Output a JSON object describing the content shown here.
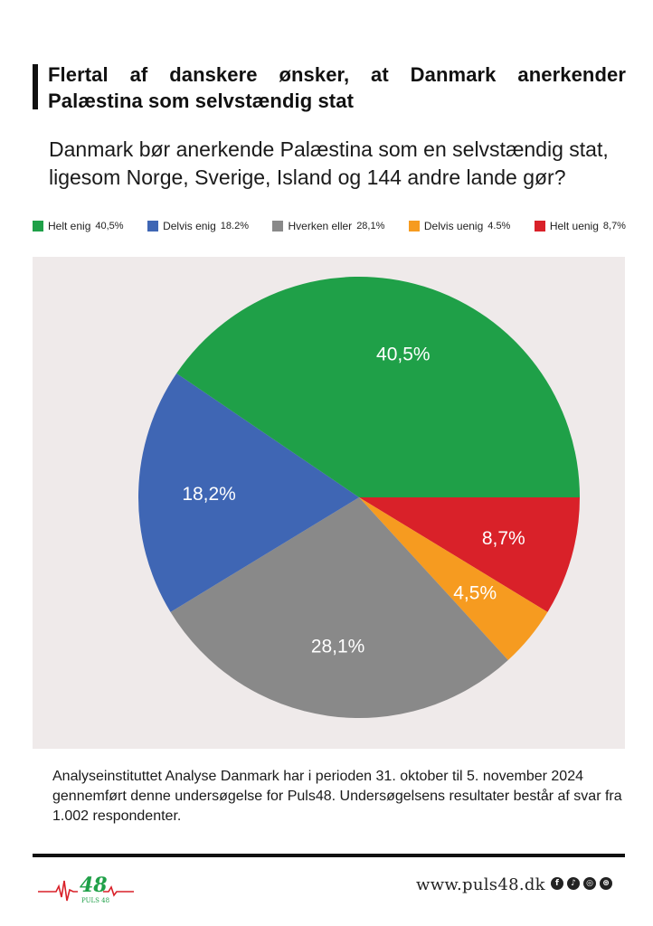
{
  "headline": "Flertal af danskere ønsker, at Danmark anerkender Palæstina som selvstændig stat",
  "question": "Danmark bør anerkende Palæstina som en selvstændig stat, ligesom Norge, Sverige, Island og 144 andre lande gør?",
  "legend": [
    {
      "label": "Helt enig",
      "value": "40,5%",
      "color": "#1fa048"
    },
    {
      "label": "Delvis enig",
      "value": "18.2%",
      "color": "#3f66b4"
    },
    {
      "label": "Hverken eller",
      "value": "28,1%",
      "color": "#898989"
    },
    {
      "label": "Delvis uenig",
      "value": "4.5%",
      "color": "#f69b20"
    },
    {
      "label": "Helt uenig",
      "value": "8,7%",
      "color": "#d92129"
    }
  ],
  "chart_data": {
    "type": "pie",
    "title": "Danmark bør anerkende Palæstina som en selvstændig stat",
    "categories": [
      "Helt uenig",
      "Delvis uenig",
      "Hverken eller",
      "Delvis enig",
      "Helt enig"
    ],
    "values": [
      8.7,
      4.5,
      28.1,
      18.2,
      40.5
    ],
    "labels": [
      "8,7%",
      "4,5%",
      "28,1%",
      "18,2%",
      "40,5%"
    ],
    "colors": [
      "#d92129",
      "#f69b20",
      "#898989",
      "#3f66b4",
      "#1fa048"
    ],
    "start": "3 o'clock",
    "direction": "clockwise"
  },
  "note": "Analyseinstituttet Analyse Danmark har i perioden 31. oktober til 5. november 2024 gennemført denne undersøgelse for Puls48. Undersøgelsens resultater består af svar fra 1.002 respondenter.",
  "footer": {
    "website": "www.puls48.dk",
    "logo_text": "PULS 48",
    "logo_number": "48",
    "social": [
      {
        "icon": "facebook-icon",
        "glyph": "f"
      },
      {
        "icon": "tiktok-icon",
        "glyph": "♪"
      },
      {
        "icon": "instagram-icon",
        "glyph": "◎"
      },
      {
        "icon": "dribbble-icon",
        "glyph": "⊛"
      }
    ]
  }
}
